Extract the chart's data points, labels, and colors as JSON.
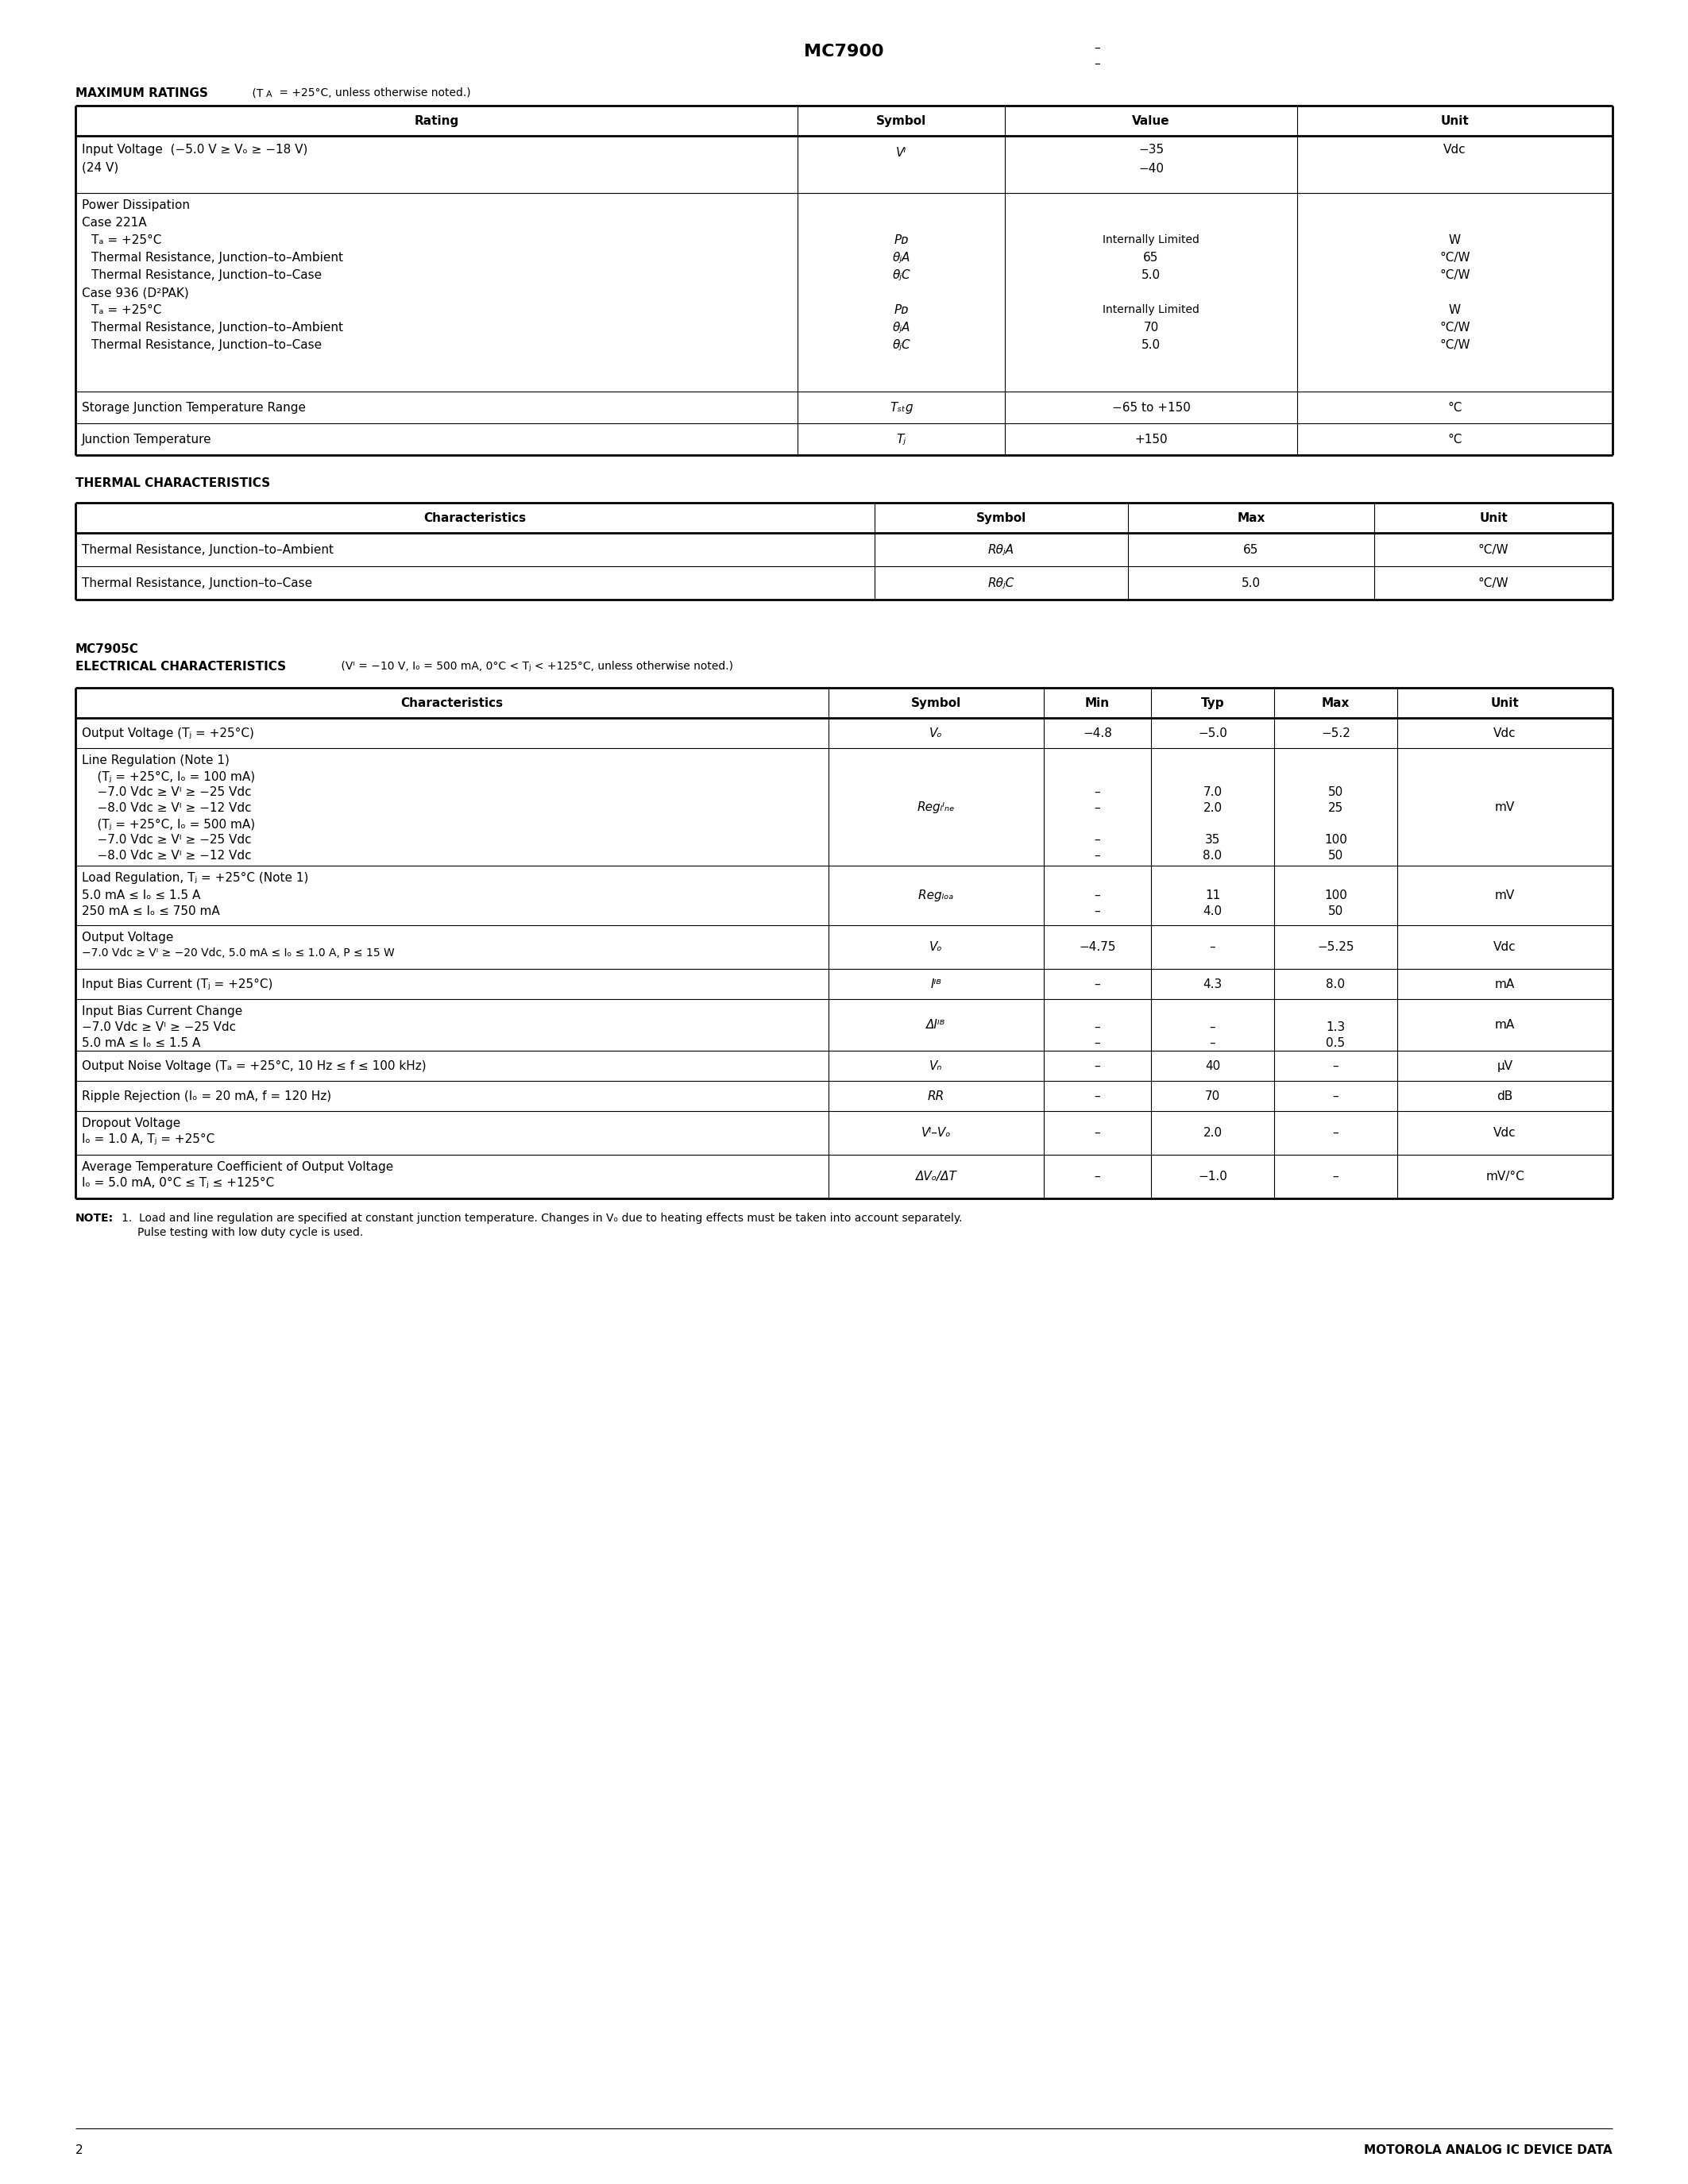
{
  "page_title": "MC7900",
  "page_number": "2",
  "footer_text": "MOTOROLA ANALOG IC DEVICE DATA"
}
